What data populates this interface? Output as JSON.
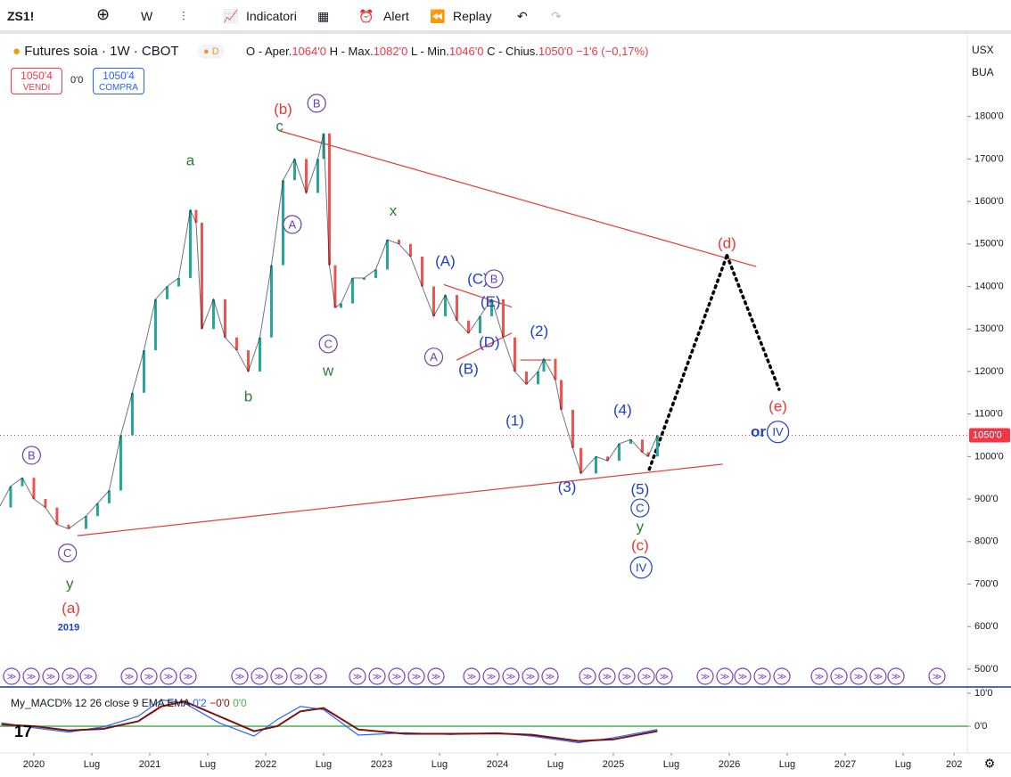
{
  "toolbar": {
    "symbol": "ZS1!",
    "interval": "W",
    "indicators": "Indicatori",
    "alert": "Alert",
    "replay": "Replay"
  },
  "legend": {
    "title": "Futures soia · 1W · CBOT",
    "badge": "D",
    "open_label": "O - Aper.",
    "open": "1064'0",
    "high_label": "H - Max.",
    "high": "1082'0",
    "low_label": "L - Min.",
    "low": "1046'0",
    "close_label": "C - Chius.",
    "close": "1050'0",
    "change": "−1'6 (−0,17%)"
  },
  "trade": {
    "sell_price": "1050'4",
    "sell": "VENDI",
    "spread": "0'0",
    "buy_price": "1050'4",
    "buy": "COMPRA"
  },
  "scale": {
    "currency": "USX",
    "unit": "BUA"
  },
  "chart_data": {
    "type": "line",
    "color": "#131722",
    "x": [
      2019.7,
      2019.8,
      2019.9,
      2020.0,
      2020.1,
      2020.2,
      2020.3,
      2020.45,
      2020.55,
      2020.65,
      2020.75,
      2020.85,
      2020.95,
      2021.05,
      2021.15,
      2021.25,
      2021.35,
      2021.4,
      2021.45,
      2021.55,
      2021.65,
      2021.75,
      2021.85,
      2021.95,
      2022.05,
      2022.15,
      2022.25,
      2022.35,
      2022.45,
      2022.5,
      2022.55,
      2022.6,
      2022.65,
      2022.75,
      2022.85,
      2022.95,
      2023.05,
      2023.15,
      2023.25,
      2023.35,
      2023.45,
      2023.55,
      2023.65,
      2023.75,
      2023.85,
      2023.95,
      2024.05,
      2024.15,
      2024.25,
      2024.35,
      2024.4,
      2024.5,
      2024.55,
      2024.65,
      2024.72,
      2024.85,
      2024.95,
      2025.05,
      2025.15,
      2025.25,
      2025.3,
      2025.38
    ],
    "values": [
      880,
      930,
      950,
      900,
      880,
      840,
      830,
      860,
      890,
      920,
      1050,
      1150,
      1250,
      1370,
      1400,
      1420,
      1580,
      1550,
      1300,
      1370,
      1280,
      1250,
      1200,
      1280,
      1450,
      1650,
      1700,
      1620,
      1700,
      1760,
      1450,
      1350,
      1360,
      1420,
      1420,
      1440,
      1510,
      1500,
      1470,
      1400,
      1330,
      1380,
      1320,
      1290,
      1330,
      1370,
      1280,
      1200,
      1170,
      1200,
      1230,
      1180,
      1110,
      1020,
      960,
      1000,
      990,
      1030,
      1040,
      1010,
      1000,
      1050
    ],
    "xlim": [
      2019.708,
      2028.054
    ],
    "ylim": [
      460,
      1990
    ],
    "yticks": [
      {
        "value": 500,
        "label": "500'0"
      },
      {
        "value": 600,
        "label": "600'0"
      },
      {
        "value": 700,
        "label": "700'0"
      },
      {
        "value": 800,
        "label": "800'0"
      },
      {
        "value": 900,
        "label": "900'0"
      },
      {
        "value": 1000,
        "label": "1000'0"
      },
      {
        "value": 1100,
        "label": "1100'0"
      },
      {
        "value": 1200,
        "label": "1200'0"
      },
      {
        "value": 1300,
        "label": "1300'0"
      },
      {
        "value": 1400,
        "label": "1400'0"
      },
      {
        "value": 1500,
        "label": "1500'0"
      },
      {
        "value": 1600,
        "label": "1600'0"
      },
      {
        "value": 1700,
        "label": "1700'0"
      },
      {
        "value": 1800,
        "label": "1800'0"
      }
    ],
    "xticks": [
      2020,
      {
        "value": 2020.5,
        "label": "Lug"
      },
      2021,
      {
        "value": 2021.5,
        "label": "Lug"
      },
      2022,
      {
        "value": 2022.5,
        "label": "Lug"
      },
      2023,
      {
        "value": 2023.5,
        "label": "Lug"
      },
      2024,
      {
        "value": 2024.5,
        "label": "Lug"
      },
      2025,
      {
        "value": 2025.5,
        "label": "Lug"
      },
      2026,
      {
        "value": 2026.5,
        "label": "Lug"
      },
      2027,
      {
        "value": 2027.5,
        "label": "Lug"
      },
      {
        "value": 2027.94,
        "label": "202"
      }
    ],
    "last": {
      "value": 1050,
      "label": "1050'0",
      "color": "#f23645"
    },
    "lines": [
      {
        "from": [
          2022.12,
          1766
        ],
        "to": [
          2026.23,
          1447
        ],
        "color": "#e53935",
        "dotted": false
      },
      {
        "from": [
          2020.38,
          814
        ],
        "to": [
          2025.94,
          982
        ],
        "color": "#e53935",
        "dotted": false
      },
      {
        "from": [
          2023.54,
          1404
        ],
        "to": [
          2024.12,
          1352
        ],
        "color": "#e53935",
        "dotted": false
      },
      {
        "from": [
          2023.65,
          1227
        ],
        "to": [
          2024.12,
          1290
        ],
        "color": "#e53935",
        "dotted": false
      },
      {
        "from": [
          2024.2,
          1227
        ],
        "to": [
          2024.46,
          1227
        ],
        "color": "#e53935",
        "dotted": false
      },
      {
        "from": [
          2025.31,
          970
        ],
        "to": [
          2025.98,
          1473
        ],
        "color": "#000000",
        "dotted": true
      },
      {
        "from": [
          2025.98,
          1473
        ],
        "to": [
          2026.43,
          1158
        ],
        "color": "#000000",
        "dotted": true
      }
    ],
    "annotations": [
      {
        "text": "(b)",
        "color": "#e53935",
        "circle": false,
        "at": [
          2022.15,
          1817
        ]
      },
      {
        "text": "B",
        "color": "#6a3fb5",
        "circle": true,
        "at": [
          2022.44,
          1831
        ]
      },
      {
        "text": "c",
        "color": "#2e7d32",
        "circle": false,
        "at": [
          2022.12,
          1777
        ]
      },
      {
        "text": "a",
        "color": "#2e7d32",
        "circle": false,
        "at": [
          2021.35,
          1697
        ]
      },
      {
        "text": "A",
        "color": "#6a3fb5",
        "circle": true,
        "at": [
          2022.23,
          1546
        ]
      },
      {
        "text": "x",
        "color": "#2e7d32",
        "circle": false,
        "at": [
          2023.1,
          1578
        ]
      },
      {
        "text": "C",
        "color": "#6a3fb5",
        "circle": true,
        "at": [
          2022.54,
          1265
        ]
      },
      {
        "text": "w",
        "color": "#2e7d32",
        "circle": false,
        "at": [
          2022.54,
          1202
        ]
      },
      {
        "text": "b",
        "color": "#2e7d32",
        "circle": false,
        "at": [
          2021.85,
          1141
        ]
      },
      {
        "text": "(A)",
        "color": "#1e40cc",
        "circle": false,
        "at": [
          2023.55,
          1460
        ]
      },
      {
        "text": "(C)",
        "color": "#1e40cc",
        "circle": false,
        "at": [
          2023.83,
          1418
        ]
      },
      {
        "text": "B",
        "color": "#6a3fb5",
        "circle": true,
        "at": [
          2023.97,
          1418
        ]
      },
      {
        "text": "(E)",
        "color": "#1e40cc",
        "circle": false,
        "at": [
          2023.94,
          1364
        ]
      },
      {
        "text": "(D)",
        "color": "#1e40cc",
        "circle": false,
        "at": [
          2023.93,
          1269
        ]
      },
      {
        "text": "A",
        "color": "#6a3fb5",
        "circle": true,
        "at": [
          2023.45,
          1234
        ]
      },
      {
        "text": "(B)",
        "color": "#1e40cc",
        "circle": false,
        "at": [
          2023.75,
          1206
        ]
      },
      {
        "text": "(2)",
        "color": "#1e40cc",
        "circle": false,
        "at": [
          2024.36,
          1295
        ]
      },
      {
        "text": "(1)",
        "color": "#1e40cc",
        "circle": false,
        "at": [
          2024.15,
          1085
        ]
      },
      {
        "text": "(4)",
        "color": "#1e40cc",
        "circle": false,
        "at": [
          2025.08,
          1110
        ]
      },
      {
        "text": "(3)",
        "color": "#1e40cc",
        "circle": false,
        "at": [
          2024.6,
          928
        ]
      },
      {
        "text": "(5)",
        "color": "#1e40cc",
        "circle": false,
        "at": [
          2025.23,
          923
        ]
      },
      {
        "text": "C",
        "color": "#1e40cc",
        "circle": true,
        "at": [
          2025.23,
          879
        ]
      },
      {
        "text": "y",
        "color": "#2e7d32",
        "circle": false,
        "at": [
          2025.23,
          835
        ]
      },
      {
        "text": "(c)",
        "color": "#e53935",
        "circle": false,
        "at": [
          2025.23,
          791
        ]
      },
      {
        "text": "IV",
        "color": "#1e40cc",
        "circle": true,
        "at": [
          2025.24,
          739
        ]
      },
      {
        "text": "(d)",
        "color": "#e53935",
        "circle": false,
        "at": [
          2025.98,
          1502
        ]
      },
      {
        "text": "(e)",
        "color": "#e53935",
        "circle": false,
        "at": [
          2026.42,
          1118
        ]
      },
      {
        "text": "or",
        "color": "#1e40cc",
        "circle": false,
        "at": [
          2026.25,
          1058
        ]
      },
      {
        "text": "IV",
        "color": "#1e40cc",
        "circle": true,
        "at": [
          2026.42,
          1058
        ]
      },
      {
        "text": "B",
        "color": "#6a3fb5",
        "circle": true,
        "at": [
          2019.98,
          1003
        ]
      },
      {
        "text": "C",
        "color": "#6a3fb5",
        "circle": true,
        "at": [
          2020.29,
          773
        ]
      },
      {
        "text": "y",
        "color": "#2e7d32",
        "circle": false,
        "at": [
          2020.31,
          701
        ]
      },
      {
        "text": "(a)",
        "color": "#e53935",
        "circle": false,
        "at": [
          2020.32,
          643
        ]
      },
      {
        "text": "2019",
        "color": "#1e40cc",
        "circle": false,
        "at": [
          2020.3,
          599
        ]
      }
    ]
  },
  "macd": {
    "title": "My_MACD% 12 26 close 9 EMA EMA",
    "v1": "0'2",
    "v2": "−0'0",
    "v3": "0'0",
    "x": [
      2019.72,
      2020.0,
      2020.3,
      2020.6,
      2020.9,
      2021.1,
      2021.3,
      2021.6,
      2021.9,
      2022.1,
      2022.3,
      2022.5,
      2022.8,
      2023.2,
      2023.6,
      2024.0,
      2024.3,
      2024.7,
      2025.0,
      2025.38
    ],
    "macd": [
      1,
      -0.5,
      -1.8,
      -0.2,
      3,
      8,
      7,
      1,
      -3,
      2,
      6,
      5,
      -2.7,
      -2,
      -2.5,
      -2,
      -3,
      -5,
      -3.5,
      -1
    ],
    "signal": [
      0.5,
      0,
      -1.3,
      -0.8,
      1.5,
      6,
      7.5,
      3,
      -1.5,
      0,
      4.5,
      5.5,
      -1,
      -2.3,
      -2.3,
      -2.2,
      -2.6,
      -4.5,
      -4,
      -1.5
    ],
    "macd_color": "#2962ff",
    "signal_color": "#7b1010",
    "zero_color": "#4caf50",
    "ylim": [
      -8.1,
      11.6
    ],
    "yticks": [
      {
        "value": 0,
        "label": "0'0"
      },
      {
        "value": 10,
        "label": "10'0"
      }
    ]
  }
}
